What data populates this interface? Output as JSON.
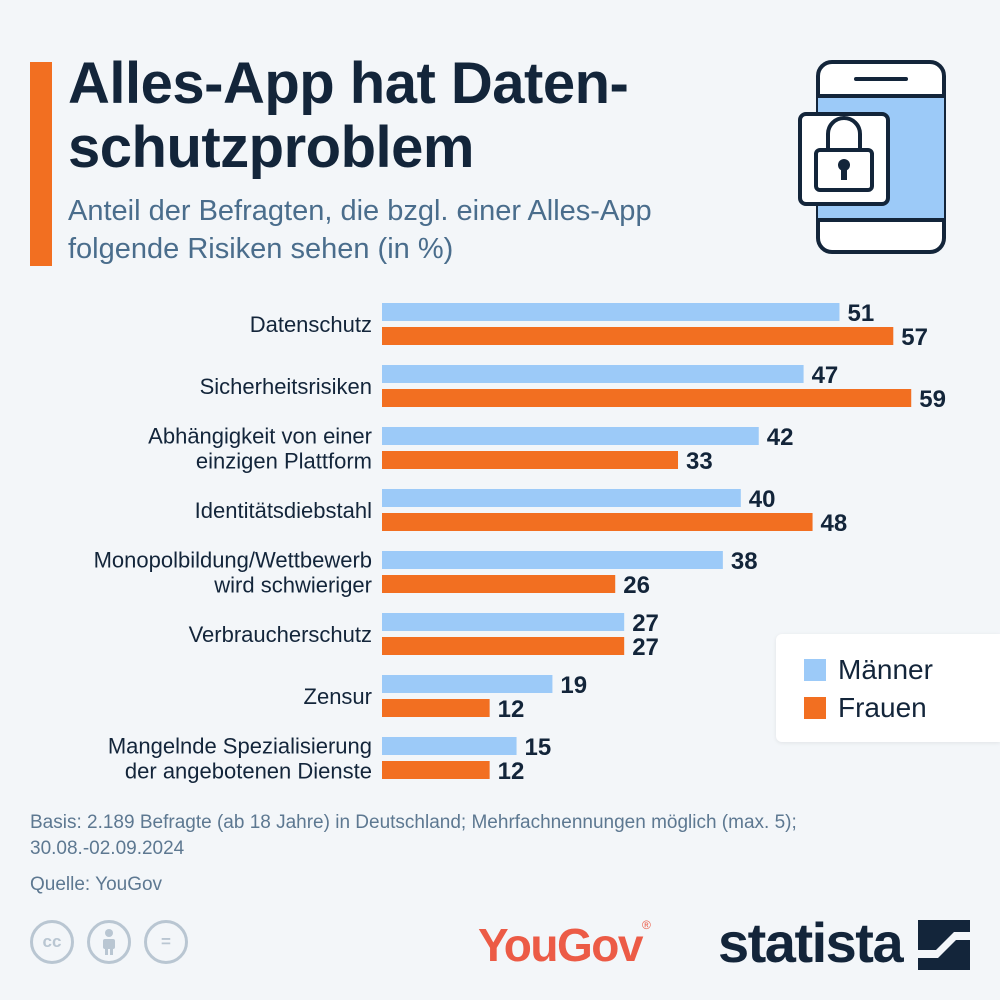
{
  "header": {
    "title_lines": [
      "Alles-App hat Daten-",
      "schutzproblem"
    ],
    "subtitle_lines": [
      "Anteil der Befragten, die bzgl. einer Alles-App",
      "folgende Risiken sehen (in %)"
    ]
  },
  "colors": {
    "accent": "#f26f21",
    "maenner": "#9ccaf8",
    "frauen": "#f26f21",
    "text_dark": "#13253a",
    "text_muted": "#5d7891"
  },
  "chart_data": {
    "type": "bar",
    "orientation": "horizontal",
    "categories": [
      [
        "Datenschutz"
      ],
      [
        "Sicherheitsrisiken"
      ],
      [
        "Abhängigkeit von einer",
        "einzigen Plattform"
      ],
      [
        "Identitätsdiebstahl"
      ],
      [
        "Monopolbildung/Wettbewerb",
        "wird schwieriger"
      ],
      [
        "Verbraucherschutz"
      ],
      [
        "Zensur"
      ],
      [
        "Mangelnde Spezialisierung",
        "der angebotenen Dienste"
      ]
    ],
    "series": [
      {
        "name": "Männer",
        "color": "#9ccaf8",
        "values": [
          51,
          47,
          42,
          40,
          38,
          27,
          19,
          15
        ]
      },
      {
        "name": "Frauen",
        "color": "#f26f21",
        "values": [
          57,
          59,
          33,
          48,
          26,
          27,
          12,
          12
        ]
      }
    ],
    "xlim": [
      0,
      59
    ],
    "grid": false,
    "legend_position": "right"
  },
  "legend": {
    "items": [
      "Männer",
      "Frauen"
    ]
  },
  "notes": {
    "basis_lines": [
      "Basis: 2.189 Befragte (ab 18 Jahre) in Deutschland; Mehrfachnennungen möglich (max. 5);",
      "30.08.-02.09.2024"
    ],
    "source": "Quelle: YouGov"
  },
  "footer": {
    "license_icons": [
      "cc-icon",
      "attribution-icon",
      "no-derivatives-icon"
    ],
    "license_symbols": [
      "cc",
      "",
      "="
    ],
    "brand_yougov": "YouGov",
    "brand_yougov_mark": "®",
    "brand_statista": "statista"
  }
}
